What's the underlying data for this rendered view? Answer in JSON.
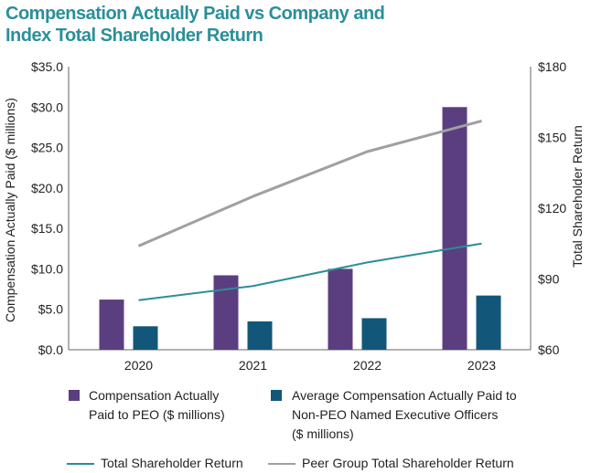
{
  "title": {
    "line1": "Compensation Actually Paid vs Company and",
    "line2": "Index Total Shareholder Return"
  },
  "colors": {
    "title": "#2a8f9a",
    "peo_bar": "#5b3e80",
    "neo_bar": "#12577a",
    "tsr_line": "#2a8f9a",
    "peer_line": "#a0a0a0",
    "axis": "#666666"
  },
  "chart_data": {
    "type": "bar",
    "categories": [
      "2020",
      "2021",
      "2022",
      "2023"
    ],
    "y_left": {
      "label": "Compensation Actually Paid ($ millions)",
      "range": [
        0,
        35
      ],
      "ticks": [
        "$0.0",
        "$5.0",
        "$10.0",
        "$15.0",
        "$20.0",
        "$25.0",
        "$30.0",
        "$35.0"
      ],
      "tick_values": [
        0,
        5,
        10,
        15,
        20,
        25,
        30,
        35
      ]
    },
    "y_right": {
      "label": "Total Shareholder Return",
      "range": [
        60,
        180
      ],
      "ticks": [
        "$60",
        "$90",
        "$120",
        "$150",
        "$180"
      ],
      "tick_values": [
        60,
        90,
        120,
        150,
        180
      ]
    },
    "series": [
      {
        "name": "Compensation Actually Paid to PEO ($ millions)",
        "kind": "bar",
        "axis": "left",
        "values": [
          6.2,
          9.2,
          10.0,
          30.0
        ]
      },
      {
        "name": "Average Compensation Actually Paid to Non-PEO Named Executive Officers ($ millions)",
        "kind": "bar",
        "axis": "left",
        "values": [
          2.9,
          3.5,
          3.9,
          6.7
        ]
      },
      {
        "name": "Total Shareholder Return",
        "kind": "line",
        "axis": "right",
        "values": [
          81,
          87,
          97,
          105
        ]
      },
      {
        "name": "Peer Group Total Shareholder Return",
        "kind": "line",
        "axis": "right",
        "values": [
          104,
          125,
          144,
          157
        ]
      }
    ],
    "grid": false
  },
  "legend": {
    "peo_line1": "Compensation Actually",
    "peo_line2": "Paid to PEO ($ millions)",
    "neo_line1": "Average Compensation Actually Paid to",
    "neo_line2": "Non-PEO Named Executive Officers",
    "neo_line3": "($ millions)",
    "tsr": "Total Shareholder Return",
    "peer": "Peer Group Total Shareholder Return"
  }
}
